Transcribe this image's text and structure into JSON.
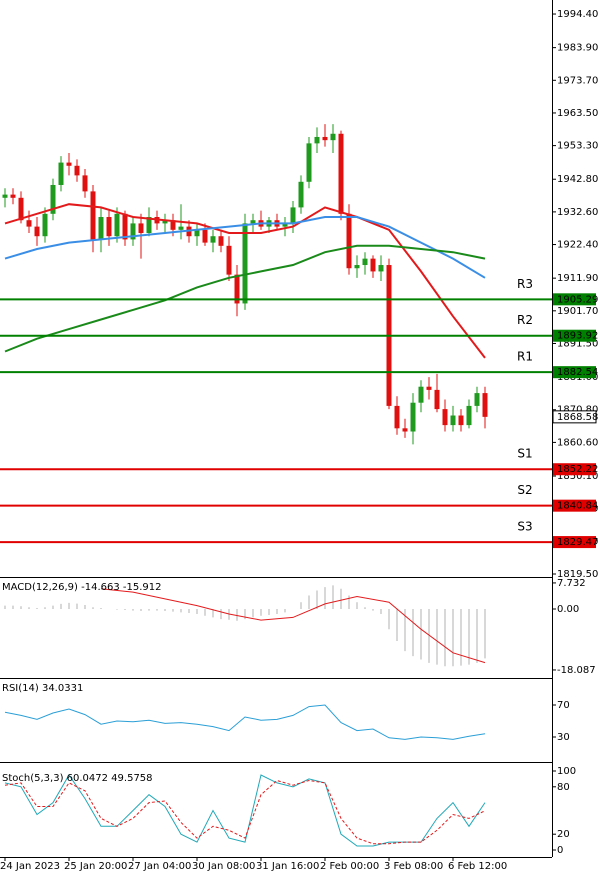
{
  "chart_data": [
    {
      "type": "candlestick",
      "categories": [
        "24 Jan 2023",
        null,
        null,
        null,
        null,
        null,
        null,
        null,
        "25 Jan 20:00",
        null,
        null,
        null,
        null,
        null,
        null,
        null,
        "27 Jan 04:00",
        null,
        null,
        null,
        null,
        null,
        null,
        null,
        "30 Jan 08:00",
        null,
        null,
        null,
        null,
        null,
        null,
        null,
        "31 Jan 16:00",
        null,
        null,
        null,
        null,
        null,
        null,
        null,
        "2 Feb 00:00",
        null,
        null,
        null,
        null,
        null,
        null,
        null,
        "3 Feb 08:00",
        null,
        null,
        null,
        null,
        null,
        null,
        null,
        "6 Feb 12:00",
        null,
        null,
        null,
        null
      ],
      "open": [
        1937,
        1938,
        1937,
        1930,
        1928,
        1925,
        1932,
        1941,
        1948,
        1947,
        1944,
        1939,
        1924,
        1931,
        1925,
        1932,
        1924,
        1929,
        1926,
        1931,
        1929,
        1930,
        1927,
        1928,
        1925,
        1927,
        1923,
        1925,
        1922,
        1913,
        1904,
        1929,
        1930,
        1928,
        1930,
        1928,
        1929,
        1934,
        1942,
        1954,
        1956,
        1955,
        1957,
        1932,
        1915,
        1916,
        1918,
        1914,
        1916,
        1872,
        1865,
        1864,
        1873,
        1878,
        1877,
        1871,
        1866,
        1869,
        1866,
        1872,
        1876
      ],
      "high": [
        1940,
        1940,
        1939,
        1933,
        1931,
        1934,
        1943,
        1950,
        1951,
        1949,
        1946,
        1941,
        1934,
        1933,
        1934,
        1933,
        1931,
        1932,
        1934,
        1933,
        1932,
        1932,
        1935,
        1930,
        1929,
        1929,
        1927,
        1927,
        1925,
        1916,
        1932,
        1932,
        1933,
        1931,
        1932,
        1931,
        1936,
        1944,
        1956,
        1959,
        1960,
        1960,
        1958,
        1935,
        1919,
        1920,
        1919,
        1919,
        1918,
        1875,
        1868,
        1876,
        1880,
        1881,
        1882,
        1874,
        1872,
        1871,
        1874,
        1878,
        1878
      ],
      "low": [
        1934,
        1935,
        1929,
        1926,
        1922,
        1923,
        1930,
        1939,
        1944,
        1942,
        1937,
        1920,
        1920,
        1922,
        1923,
        1922,
        1922,
        1918,
        1925,
        1927,
        1926,
        1925,
        1924,
        1923,
        1922,
        1922,
        1920,
        1920,
        1911,
        1900,
        1902,
        1926,
        1927,
        1926,
        1927,
        1925,
        1926,
        1932,
        1940,
        1951,
        1953,
        1951,
        1930,
        1913,
        1912,
        1913,
        1912,
        1911,
        1871,
        1863,
        1862,
        1860,
        1870,
        1874,
        1870,
        1864,
        1864,
        1864,
        1865,
        1870,
        1865
      ],
      "close": [
        1938,
        1937,
        1930,
        1928,
        1925,
        1932,
        1941,
        1948,
        1947,
        1944,
        1939,
        1924,
        1931,
        1925,
        1932,
        1924,
        1929,
        1926,
        1931,
        1929,
        1930,
        1927,
        1928,
        1925,
        1927,
        1923,
        1925,
        1922,
        1913,
        1904,
        1929,
        1930,
        1928,
        1930,
        1928,
        1929,
        1934,
        1942,
        1954,
        1956,
        1955,
        1957,
        1932,
        1915,
        1916,
        1918,
        1914,
        1916,
        1872,
        1865,
        1864,
        1873,
        1878,
        1877,
        1871,
        1866,
        1869,
        1866,
        1872,
        1876,
        1868.58
      ],
      "up_color": "#1f9a1f",
      "down_color": "#e01010",
      "series": [
        {
          "color": "#e31a1c",
          "x": [
            0,
            4,
            8,
            12,
            16,
            20,
            24,
            28,
            32,
            36,
            40,
            44,
            48,
            52,
            56,
            60
          ],
          "values": [
            1929,
            1932,
            1935,
            1934,
            1931,
            1930,
            1929,
            1926,
            1926,
            1928,
            1934,
            1931,
            1927,
            1914,
            1900,
            1887
          ]
        },
        {
          "color": "#3a8ee6",
          "x": [
            0,
            4,
            8,
            12,
            16,
            20,
            24,
            28,
            32,
            36,
            40,
            44,
            48,
            52,
            56,
            60
          ],
          "values": [
            1918,
            1921,
            1923,
            1924,
            1925,
            1926,
            1927,
            1928,
            1929,
            1929,
            1931,
            1931,
            1928,
            1923,
            1918,
            1912
          ]
        },
        {
          "color": "#1a8a1a",
          "x": [
            0,
            4,
            8,
            12,
            16,
            20,
            24,
            28,
            32,
            36,
            40,
            44,
            48,
            52,
            56,
            60
          ],
          "values": [
            1889,
            1893,
            1896,
            1899,
            1902,
            1905,
            1909,
            1912,
            1914,
            1916,
            1920,
            1922,
            1922,
            1921,
            1920,
            1918
          ]
        }
      ],
      "levels": [
        {
          "name": "R3",
          "value": 1905.29,
          "color": "#008000"
        },
        {
          "name": "R2",
          "value": 1893.92,
          "color": "#008000"
        },
        {
          "name": "R1",
          "value": 1882.54,
          "color": "#008000"
        },
        {
          "name": "S1",
          "value": 1852.22,
          "color": "#e00000"
        },
        {
          "name": "S2",
          "value": 1840.84,
          "color": "#e00000"
        },
        {
          "name": "S3",
          "value": 1829.47,
          "color": "#e00000"
        }
      ],
      "ylim": [
        1818.56,
        1998.78
      ],
      "yticks": [
        {
          "value": 1994.4,
          "label": "1994.40"
        },
        {
          "value": 1983.9,
          "label": "1983.90"
        },
        {
          "value": 1973.7,
          "label": "1973.70"
        },
        {
          "value": 1963.5,
          "label": "1963.50"
        },
        {
          "value": 1953.3,
          "label": "1953.30"
        },
        {
          "value": 1942.8,
          "label": "1942.80"
        },
        {
          "value": 1932.6,
          "label": "1932.60"
        },
        {
          "value": 1922.4,
          "label": "1922.40"
        },
        {
          "value": 1911.9,
          "label": "1911.90"
        },
        {
          "value": 1901.7,
          "label": "1901.70"
        },
        {
          "value": 1891.5,
          "label": "1891.50"
        },
        {
          "value": 1881,
          "label": "1881.00"
        },
        {
          "value": 1870.8,
          "label": "1870.80"
        },
        {
          "value": 1860.6,
          "label": "1860.60"
        },
        {
          "value": 1850.1,
          "label": "1850.10"
        },
        {
          "value": 1839.9,
          "label": "1839.90"
        },
        {
          "value": 1829.7,
          "label": "1829.70"
        },
        {
          "value": 1819.5,
          "label": "1819.50"
        }
      ]
    },
    {
      "type": "macd",
      "title": "MACD(12,26,9) -14.663 -15.912",
      "color": "#b0b0b0",
      "values": [
        1,
        1,
        0.8,
        0.5,
        0.3,
        0.5,
        1,
        1.5,
        1.8,
        1.6,
        1.2,
        0.5,
        0.3,
        0,
        -0.2,
        -0.3,
        -0.5,
        -0.6,
        -0.5,
        -0.5,
        -0.6,
        -0.8,
        -1,
        -1.2,
        -1.5,
        -2,
        -2.5,
        -3,
        -3.2,
        -3.5,
        -3,
        -2.5,
        -2,
        -1.8,
        -1.5,
        -1,
        0,
        2,
        4,
        5.5,
        6.5,
        7,
        6,
        4,
        2,
        0.5,
        -0.5,
        -1.5,
        -6,
        -9.5,
        -12.5,
        -14,
        -15,
        -16,
        -16.5,
        -17,
        -17,
        -16.8,
        -16.5,
        -16,
        -14.663
      ],
      "series": [
        {
          "color": "#e31a1c",
          "x": [
            12,
            16,
            20,
            24,
            28,
            32,
            36,
            40,
            44,
            48,
            52,
            56,
            60
          ],
          "values": [
            6,
            5,
            3,
            1,
            -1.5,
            -3.3,
            -2.5,
            1.5,
            3.7,
            2,
            -6,
            -13,
            -15.912
          ]
        }
      ],
      "ylim": [
        -19.88,
        8.6
      ],
      "yticks": [
        7.732,
        {
          "value": 0,
          "label": "0.00"
        },
        -18.087
      ]
    },
    {
      "type": "line",
      "title": "RSI(14) 34.0331",
      "series": [
        {
          "color": "#2a9fd6",
          "x": [
            0,
            2,
            4,
            6,
            8,
            10,
            12,
            14,
            16,
            18,
            20,
            22,
            24,
            26,
            28,
            30,
            32,
            34,
            36,
            38,
            40,
            42,
            44,
            46,
            48,
            50,
            52,
            54,
            56,
            58,
            60
          ],
          "values": [
            61,
            57,
            52,
            60,
            65,
            58,
            46,
            50,
            49,
            51,
            47,
            48,
            46,
            43,
            38,
            55,
            51,
            52,
            57,
            68,
            70,
            48,
            38,
            40,
            29,
            27,
            30,
            29,
            27,
            31,
            34.0331
          ]
        }
      ],
      "ylim": [
        0,
        100
      ],
      "yticks": [
        70,
        30
      ]
    },
    {
      "type": "line",
      "title": "Stoch(5,3,3) 60.0472 49.5758",
      "series": [
        {
          "color": "#20a8b8",
          "x": [
            0,
            2,
            4,
            6,
            8,
            10,
            12,
            14,
            16,
            18,
            20,
            22,
            24,
            26,
            28,
            30,
            32,
            34,
            36,
            38,
            40,
            42,
            44,
            46,
            48,
            50,
            52,
            54,
            56,
            58,
            60
          ],
          "values": [
            85,
            80,
            45,
            60,
            95,
            65,
            30,
            30,
            50,
            70,
            55,
            20,
            10,
            50,
            15,
            10,
            95,
            85,
            80,
            90,
            85,
            20,
            5,
            5,
            10,
            10,
            10,
            40,
            60,
            30,
            60.0472
          ]
        },
        {
          "color": "#e31a1c",
          "dashed": true,
          "x": [
            0,
            2,
            4,
            6,
            8,
            10,
            12,
            14,
            16,
            18,
            20,
            22,
            24,
            26,
            28,
            30,
            32,
            34,
            36,
            38,
            40,
            42,
            44,
            46,
            48,
            50,
            52,
            54,
            56,
            58,
            60
          ],
          "values": [
            82,
            85,
            55,
            55,
            85,
            75,
            40,
            30,
            40,
            60,
            62,
            35,
            15,
            30,
            25,
            15,
            70,
            88,
            82,
            88,
            85,
            40,
            15,
            8,
            8,
            10,
            10,
            25,
            45,
            40,
            49.5758
          ]
        }
      ],
      "ylim": [
        0,
        100
      ],
      "yticks": [
        100,
        80,
        20,
        0
      ]
    }
  ]
}
